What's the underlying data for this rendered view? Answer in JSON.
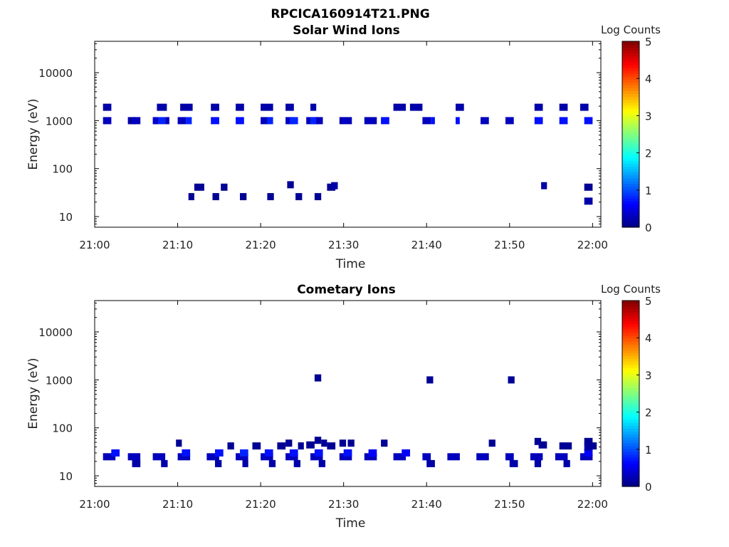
{
  "figure_title": "RPCICA160914T21.PNG",
  "chart_data": [
    {
      "type": "heatmap",
      "title": "Solar Wind Ions",
      "xlabel": "Time",
      "ylabel": "Energy (eV)",
      "yscale": "log",
      "ylim": [
        6,
        45000
      ],
      "xlim": [
        "21:00",
        "22:01"
      ],
      "x_ticks": [
        "21:00",
        "21:10",
        "21:20",
        "21:30",
        "21:40",
        "21:50",
        "22:00"
      ],
      "y_ticks": [
        "10",
        "100",
        "1000",
        "10000"
      ],
      "colorbar": {
        "label": "Log Counts",
        "min": 0,
        "max": 5,
        "ticks": [
          "0",
          "1",
          "2",
          "3",
          "4",
          "5"
        ],
        "colormap": "jet"
      },
      "cells": [
        [
          1.0,
          2.0,
          1000,
          0.3
        ],
        [
          1.0,
          2.0,
          1900,
          0.2
        ],
        [
          4.0,
          5.0,
          1000,
          0.2
        ],
        [
          4.5,
          5.5,
          1000,
          0.3
        ],
        [
          7.0,
          7.7,
          1000,
          0.4
        ],
        [
          7.7,
          8.5,
          1000,
          0.8
        ],
        [
          7.5,
          8.7,
          1900,
          0.2
        ],
        [
          8.5,
          9.0,
          1000,
          0.3
        ],
        [
          10.0,
          11.0,
          1000,
          0.3
        ],
        [
          11.0,
          11.7,
          1000,
          0.8
        ],
        [
          10.3,
          11.8,
          1900,
          0.2
        ],
        [
          11.3,
          12.0,
          26,
          0.1
        ],
        [
          12.0,
          13.2,
          41,
          0.1
        ],
        [
          14.0,
          15.0,
          1000,
          0.7
        ],
        [
          14.0,
          15.0,
          1900,
          0.2
        ],
        [
          14.2,
          15.0,
          26,
          0.1
        ],
        [
          15.2,
          16.0,
          41,
          0.1
        ],
        [
          17.0,
          18.0,
          1000,
          0.7
        ],
        [
          17.0,
          18.0,
          1900,
          0.2
        ],
        [
          17.5,
          18.3,
          26,
          0.1
        ],
        [
          20.0,
          21.0,
          1000,
          0.3
        ],
        [
          20.8,
          21.5,
          1000,
          0.8
        ],
        [
          20.0,
          21.5,
          1900,
          0.2
        ],
        [
          20.8,
          21.6,
          26,
          0.1
        ],
        [
          23.0,
          24.0,
          1000,
          0.3
        ],
        [
          23.5,
          24.5,
          1000,
          0.8
        ],
        [
          23.0,
          24.0,
          1900,
          0.2
        ],
        [
          23.2,
          24.0,
          46,
          0.1
        ],
        [
          24.2,
          25.0,
          26,
          0.1
        ],
        [
          25.5,
          27.0,
          1000,
          0.3
        ],
        [
          26.0,
          26.8,
          1000,
          0.8
        ],
        [
          26.0,
          26.7,
          1900,
          0.2
        ],
        [
          26.7,
          27.5,
          1000,
          0.3
        ],
        [
          26.5,
          27.3,
          26,
          0.1
        ],
        [
          28.0,
          29.0,
          41,
          0.1
        ],
        [
          28.5,
          29.3,
          44,
          0.2
        ],
        [
          29.5,
          31.0,
          1000,
          0.3
        ],
        [
          32.5,
          34.0,
          1000,
          0.3
        ],
        [
          34.5,
          35.5,
          1000,
          0.7
        ],
        [
          36.0,
          37.5,
          1900,
          0.2
        ],
        [
          38.0,
          39.5,
          1900,
          0.2
        ],
        [
          39.5,
          40.5,
          1000,
          0.3
        ],
        [
          40.5,
          41.0,
          1000,
          0.7
        ],
        [
          43.5,
          44.0,
          1000,
          0.7
        ],
        [
          43.5,
          44.5,
          1900,
          0.2
        ],
        [
          46.5,
          47.5,
          1000,
          0.3
        ],
        [
          49.5,
          50.5,
          1000,
          0.3
        ],
        [
          53.0,
          54.0,
          1000,
          0.7
        ],
        [
          53.0,
          54.0,
          1900,
          0.2
        ],
        [
          53.8,
          54.5,
          44,
          0.2
        ],
        [
          56.0,
          57.0,
          1000,
          0.7
        ],
        [
          56.0,
          57.0,
          1900,
          0.2
        ],
        [
          58.5,
          59.5,
          1900,
          0.2
        ],
        [
          59.0,
          60.0,
          1000,
          0.7
        ],
        [
          59.0,
          60.0,
          41,
          0.1
        ],
        [
          59.0,
          60.0,
          21,
          0.2
        ]
      ]
    },
    {
      "type": "heatmap",
      "title": "Cometary Ions",
      "xlabel": "Time",
      "ylabel": "Energy (eV)",
      "yscale": "log",
      "ylim": [
        6,
        45000
      ],
      "xlim": [
        "21:00",
        "22:01"
      ],
      "x_ticks": [
        "21:00",
        "21:10",
        "21:20",
        "21:30",
        "21:40",
        "21:50",
        "22:00"
      ],
      "y_ticks": [
        "10",
        "100",
        "1000",
        "10000"
      ],
      "colorbar": {
        "label": "Log Counts",
        "min": 0,
        "max": 5,
        "ticks": [
          "0",
          "1",
          "2",
          "3",
          "4",
          "5"
        ],
        "colormap": "jet"
      },
      "cells": [
        [
          1.0,
          2.5,
          25,
          0.3
        ],
        [
          2.0,
          3.0,
          30,
          0.7
        ],
        [
          4.0,
          5.5,
          25,
          0.3
        ],
        [
          4.5,
          5.5,
          18,
          0.2
        ],
        [
          7.0,
          8.5,
          25,
          0.3
        ],
        [
          8.0,
          8.8,
          18,
          0.2
        ],
        [
          10.0,
          11.5,
          25,
          0.3
        ],
        [
          10.5,
          11.5,
          30,
          0.7
        ],
        [
          13.5,
          15.0,
          25,
          0.3
        ],
        [
          14.5,
          15.5,
          30,
          0.7
        ],
        [
          14.5,
          15.3,
          18,
          0.2
        ],
        [
          17.0,
          18.5,
          25,
          0.3
        ],
        [
          17.5,
          18.5,
          30,
          0.8
        ],
        [
          17.8,
          18.5,
          18,
          0.2
        ],
        [
          20.0,
          21.5,
          25,
          0.3
        ],
        [
          20.5,
          21.5,
          30,
          0.7
        ],
        [
          21.0,
          21.8,
          18,
          0.2
        ],
        [
          23.0,
          24.5,
          25,
          0.3
        ],
        [
          23.5,
          24.5,
          30,
          0.7
        ],
        [
          24.0,
          24.8,
          18,
          0.2
        ],
        [
          26.0,
          27.5,
          25,
          0.3
        ],
        [
          26.5,
          27.5,
          30,
          0.7
        ],
        [
          27.0,
          27.8,
          18,
          0.2
        ],
        [
          29.5,
          31.0,
          25,
          0.3
        ],
        [
          30.0,
          31.0,
          30,
          0.7
        ],
        [
          32.5,
          34.0,
          25,
          0.3
        ],
        [
          33.0,
          34.0,
          30,
          0.6
        ],
        [
          36.0,
          37.5,
          25,
          0.3
        ],
        [
          37.0,
          38.0,
          30,
          0.6
        ],
        [
          39.5,
          40.5,
          25,
          0.3
        ],
        [
          40.0,
          41.0,
          18,
          0.2
        ],
        [
          42.5,
          44.0,
          25,
          0.3
        ],
        [
          46.0,
          47.5,
          25,
          0.3
        ],
        [
          49.5,
          50.5,
          25,
          0.3
        ],
        [
          50.0,
          51.0,
          18,
          0.2
        ],
        [
          52.5,
          54.0,
          25,
          0.3
        ],
        [
          53.0,
          53.8,
          18,
          0.2
        ],
        [
          55.5,
          57.0,
          25,
          0.3
        ],
        [
          56.5,
          57.3,
          18,
          0.2
        ],
        [
          58.5,
          60.0,
          25,
          0.3
        ],
        [
          59.0,
          60.0,
          30,
          0.6
        ],
        [
          9.8,
          10.5,
          48,
          0.1
        ],
        [
          16.0,
          16.8,
          42,
          0.1
        ],
        [
          19.0,
          20.0,
          42,
          0.1
        ],
        [
          22.0,
          23.0,
          42,
          0.1
        ],
        [
          23.0,
          23.8,
          48,
          0.1
        ],
        [
          24.5,
          25.2,
          42,
          0.1
        ],
        [
          25.5,
          26.5,
          44,
          0.1
        ],
        [
          26.5,
          27.3,
          55,
          0.1
        ],
        [
          27.3,
          28.0,
          48,
          0.1
        ],
        [
          28.0,
          29.0,
          42,
          0.1
        ],
        [
          29.5,
          30.3,
          48,
          0.1
        ],
        [
          30.5,
          31.3,
          48,
          0.1
        ],
        [
          34.5,
          35.3,
          48,
          0.1
        ],
        [
          47.5,
          48.3,
          48,
          0.1
        ],
        [
          53.0,
          53.8,
          52,
          0.1
        ],
        [
          53.5,
          54.5,
          44,
          0.1
        ],
        [
          56.0,
          57.5,
          42,
          0.1
        ],
        [
          59.0,
          60.0,
          52,
          0.1
        ],
        [
          59.0,
          60.0,
          40,
          0.2
        ],
        [
          59.5,
          60.5,
          42,
          0.1
        ],
        [
          26.5,
          27.3,
          1100,
          0.1
        ],
        [
          40.0,
          40.8,
          1000,
          0.1
        ],
        [
          49.8,
          50.6,
          1000,
          0.1
        ]
      ]
    }
  ]
}
